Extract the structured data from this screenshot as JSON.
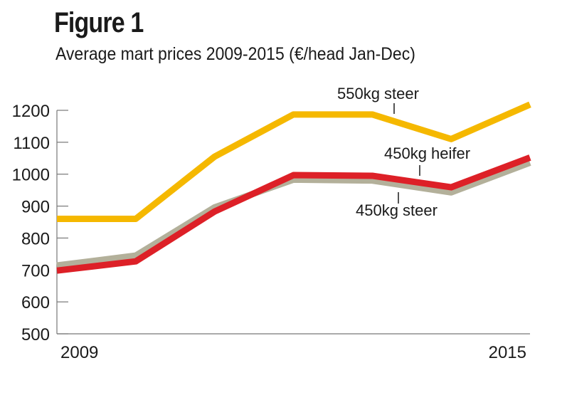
{
  "chart_data": {
    "type": "line",
    "title": "Figure 1",
    "subtitle": "Average mart prices 2009-2015 (€/head Jan-Dec)",
    "x": [
      2009,
      2010,
      2011,
      2012,
      2013,
      2014,
      2015
    ],
    "x_tick_labels": [
      "2009",
      "2015"
    ],
    "y_ticks": [
      500,
      600,
      700,
      800,
      900,
      1000,
      1100,
      1200
    ],
    "ylim": [
      500,
      1200
    ],
    "grid": false,
    "series": [
      {
        "name": "550kg steer",
        "color": "#f5b800",
        "values": [
          860,
          860,
          1055,
          1187,
          1187,
          1110,
          1218
        ]
      },
      {
        "name": "450kg steer",
        "color": "#b3b09a",
        "values": [
          714,
          745,
          896,
          983,
          980,
          943,
          1036
        ]
      },
      {
        "name": "450kg heifer",
        "color": "#dd2027",
        "values": [
          698,
          727,
          883,
          997,
          995,
          959,
          1052
        ]
      }
    ]
  }
}
